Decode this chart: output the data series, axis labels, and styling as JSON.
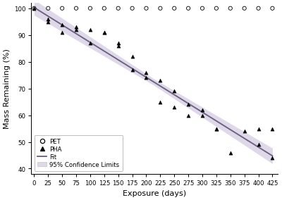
{
  "pet_x": [
    0,
    25,
    50,
    75,
    100,
    125,
    150,
    175,
    200,
    225,
    250,
    275,
    300,
    325,
    350,
    375,
    400,
    425
  ],
  "pet_y": [
    100,
    100,
    100,
    100,
    100,
    100,
    100,
    100,
    100,
    100,
    100,
    100,
    100,
    100,
    100,
    100,
    100,
    100
  ],
  "pha_x": [
    0,
    25,
    25,
    50,
    50,
    75,
    75,
    100,
    100,
    125,
    125,
    150,
    150,
    175,
    175,
    200,
    200,
    225,
    225,
    250,
    250,
    275,
    275,
    300,
    300,
    325,
    325,
    350,
    375,
    400,
    400,
    425,
    425
  ],
  "pha_y": [
    100,
    96,
    95,
    94,
    91,
    93,
    92,
    92,
    87,
    91,
    91,
    87,
    86,
    82,
    77,
    76,
    74,
    73,
    65,
    69,
    63,
    64,
    60,
    62,
    60,
    55,
    55,
    46,
    54,
    55,
    49,
    55,
    44
  ],
  "fit_x_start": 0,
  "fit_x_end": 425,
  "fit_slope": -0.1306,
  "fit_intercept": 100.3,
  "conf_upper_add": 1.2,
  "conf_lower_sub": 1.2,
  "conf_widen_rate": 0.008,
  "xlim": [
    -5,
    435
  ],
  "ylim": [
    38,
    102
  ],
  "xticks": [
    0,
    25,
    50,
    75,
    100,
    125,
    150,
    175,
    200,
    225,
    250,
    275,
    300,
    325,
    350,
    375,
    400,
    425
  ],
  "yticks": [
    40,
    50,
    60,
    70,
    80,
    90,
    100
  ],
  "xlabel": "Exposure (days)",
  "ylabel": "Mass Remaining (%)",
  "fit_color": "#6B607F",
  "conf_color": "#C5B8D8",
  "background_color": "#ffffff",
  "conf_alpha": 0.55,
  "figwidth": 4.5,
  "figheight": 3.2,
  "dpi": 89
}
